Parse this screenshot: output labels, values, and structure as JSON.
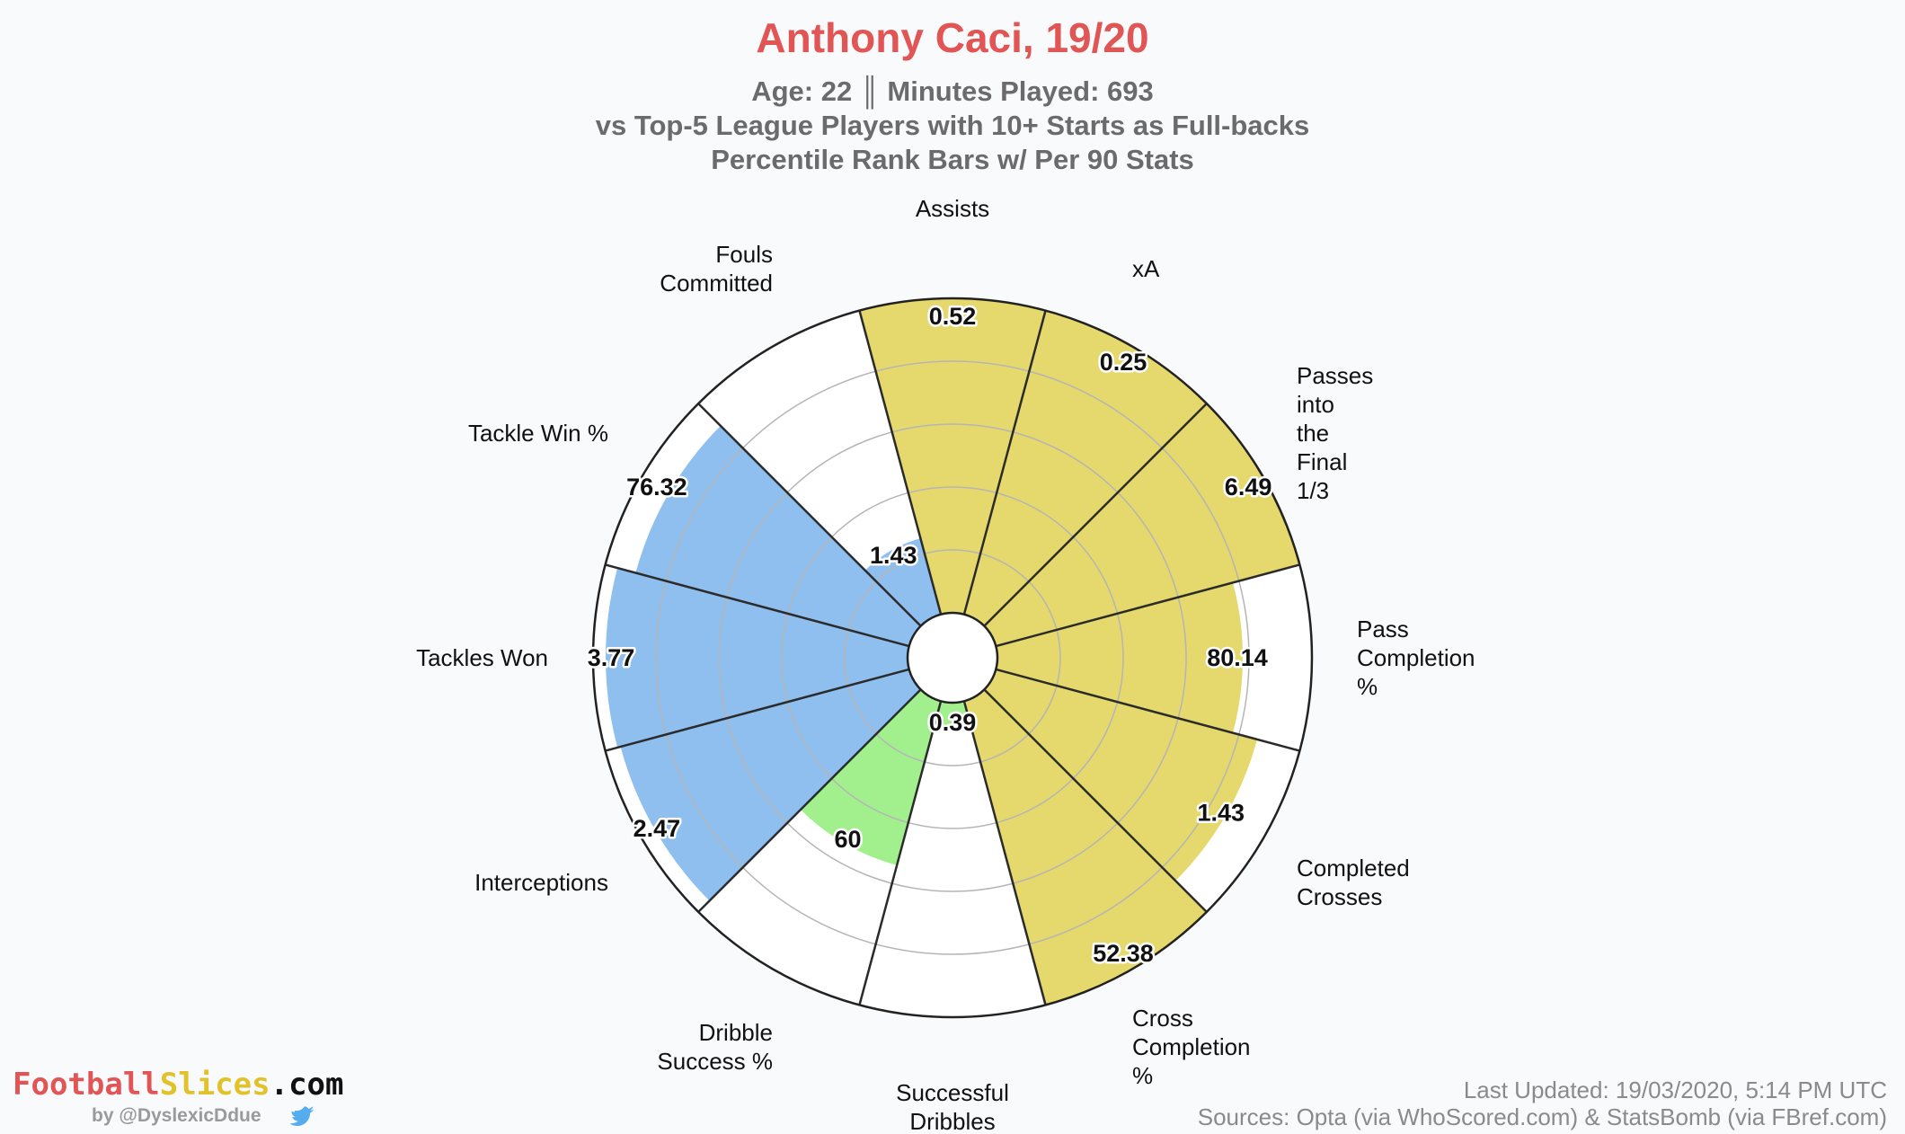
{
  "header": {
    "title": "Anthony Caci, 19/20",
    "subtitle_lines": [
      "Age: 22 ║ Minutes Played: 693",
      "vs Top-5 League Players with 10+ Starts as Full-backs",
      "Percentile Rank Bars w/ Per 90 Stats"
    ]
  },
  "chart_data": {
    "type": "polar-bar",
    "scale": "percentile",
    "rmax": 100,
    "gridlines": [
      20,
      40,
      60,
      80
    ],
    "categories": [
      {
        "label": "Assists",
        "value": "0.52",
        "percentile": 100,
        "group": "attacking"
      },
      {
        "label": "xA",
        "value": "0.25",
        "percentile": 100,
        "group": "attacking"
      },
      {
        "label": "Passes into the Final 1/3",
        "value": "6.49",
        "percentile": 100,
        "group": "attacking"
      },
      {
        "label": "Pass Completion %",
        "value": "80.14",
        "percentile": 78,
        "group": "attacking"
      },
      {
        "label": "Completed Crosses",
        "value": "1.43",
        "percentile": 86,
        "group": "attacking"
      },
      {
        "label": "Cross Completion %",
        "value": "52.38",
        "percentile": 100,
        "group": "attacking"
      },
      {
        "label": "Successful Dribbles",
        "value": "0.39",
        "percentile": 8,
        "group": "possession"
      },
      {
        "label": "Dribble Success %",
        "value": "60",
        "percentile": 54,
        "group": "possession"
      },
      {
        "label": "Interceptions",
        "value": "2.47",
        "percentile": 95,
        "group": "defending"
      },
      {
        "label": "Tackles Won",
        "value": "3.77",
        "percentile": 96,
        "group": "defending"
      },
      {
        "label": "Tackle Win %",
        "value": "76.32",
        "percentile": 90,
        "group": "defending"
      },
      {
        "label": "Fouls Committed",
        "value": "1.43",
        "percentile": 25,
        "group": "defending"
      }
    ],
    "colors": {
      "attacking": "#e5d86c",
      "possession": "#a2ef8d",
      "defending": "#8fbfee",
      "title": "#e15555",
      "text": "#111111"
    }
  },
  "footer": {
    "logo": {
      "part1": "Football",
      "part2": "Slices",
      "part3": ".com",
      "color1": "#e15555",
      "color2": "#e1c22b",
      "color3": "#111111"
    },
    "byline": "by @DyslexicDdue",
    "last_updated": "Last Updated: 19/03/2020, 5:14 PM UTC",
    "sources": "Sources: Opta (via WhoScored.com) & StatsBomb (via FBref.com)"
  }
}
